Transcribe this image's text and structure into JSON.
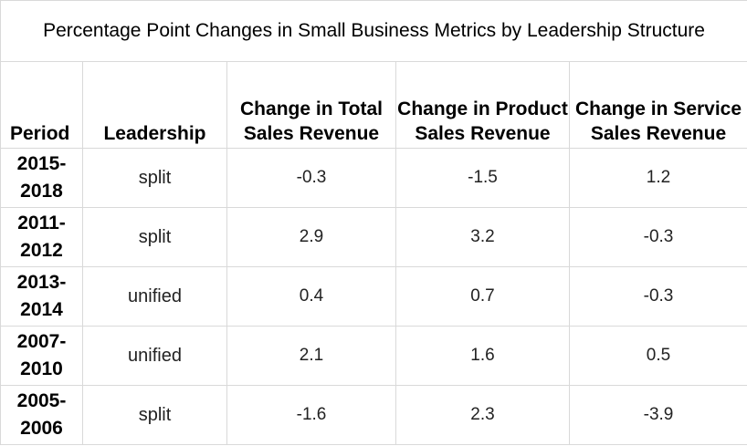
{
  "title": "Percentage Point Changes in Small Business Metrics by Leadership Structure",
  "columns": [
    "Period",
    "Leadership",
    "Change in Total Sales Revenue",
    "Change in Product Sales Revenue",
    "Change in Service Sales Revenue"
  ],
  "rows": [
    {
      "period": "2015-2018",
      "leadership": "split",
      "total": "-0.3",
      "product": "-1.5",
      "service": "1.2"
    },
    {
      "period": "2011-2012",
      "leadership": "split",
      "total": "2.9",
      "product": "3.2",
      "service": "-0.3"
    },
    {
      "period": "2013-2014",
      "leadership": "unified",
      "total": "0.4",
      "product": "0.7",
      "service": "-0.3"
    },
    {
      "period": "2007-2010",
      "leadership": "unified",
      "total": "2.1",
      "product": "1.6",
      "service": "0.5"
    },
    {
      "period": "2005-2006",
      "leadership": "split",
      "total": "-1.6",
      "product": "2.3",
      "service": "-3.9"
    }
  ],
  "colors": {
    "grid_line": "#d9d9d9",
    "background": "#ffffff",
    "text": "#000000"
  }
}
